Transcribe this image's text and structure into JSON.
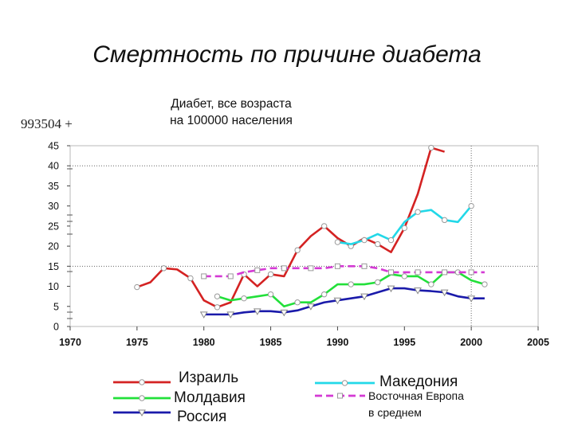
{
  "slide_title": "Смертность по причине диабета",
  "code_label": "993504 +",
  "chart_data": {
    "type": "line",
    "title": [
      "Диабет, все возраста",
      "на 100000 населения"
    ],
    "xlim": [
      1970,
      2005
    ],
    "ylim": [
      0,
      45
    ],
    "x_ticks": [
      "1970",
      "1975",
      "1980",
      "1985",
      "1990",
      "1995",
      "2000",
      "2005"
    ],
    "y_ticks": [
      "0",
      "5",
      "10",
      "15",
      "20",
      "25",
      "30",
      "35",
      "40",
      "45"
    ],
    "grid": "dotted",
    "series": [
      {
        "name": "Израиль",
        "color": "#d42222",
        "marker": "circle",
        "x": [
          1975,
          1976,
          1977,
          1978,
          1979,
          1980,
          1981,
          1982,
          1983,
          1984,
          1985,
          1986,
          1987,
          1988,
          1989,
          1990,
          1991,
          1992,
          1993,
          1994,
          1995,
          1996,
          1997,
          1998
        ],
        "y": [
          9.8,
          11,
          14.5,
          14.2,
          12,
          6.5,
          4.8,
          6,
          13,
          10,
          13,
          12.5,
          19,
          22.5,
          25,
          22,
          20,
          22,
          20.5,
          18.5,
          24.5,
          33,
          44.5,
          43.5
        ]
      },
      {
        "name": "Македония",
        "color": "#22d8e8",
        "marker": "circle",
        "x": [
          1990,
          1991,
          1992,
          1993,
          1994,
          1995,
          1996,
          1997,
          1998,
          1999,
          2000
        ],
        "y": [
          21,
          20.5,
          21.5,
          23,
          21.5,
          26,
          28.5,
          29,
          26.5,
          26,
          30
        ]
      },
      {
        "name": "Молдавия",
        "color": "#22e03a",
        "marker": "circle",
        "x": [
          1981,
          1982,
          1983,
          1984,
          1985,
          1986,
          1987,
          1988,
          1989,
          1990,
          1991,
          1992,
          1993,
          1994,
          1995,
          1996,
          1997,
          1998,
          1999,
          2000,
          2001
        ],
        "y": [
          7.5,
          6.5,
          7,
          7.5,
          8,
          5,
          6,
          6,
          8,
          10.5,
          10.5,
          10.5,
          11,
          13,
          12.5,
          12.5,
          10.5,
          13.5,
          13.5,
          11.5,
          10.5
        ]
      },
      {
        "name": "Восточная Европа в среднем",
        "color": "#d43ad4",
        "marker": "square",
        "x": [
          1980,
          1981,
          1982,
          1983,
          1984,
          1985,
          1986,
          1987,
          1988,
          1989,
          1990,
          1991,
          1992,
          1993,
          1994,
          1995,
          1996,
          1997,
          1998,
          1999,
          2000,
          2001
        ],
        "y": [
          12.5,
          12.5,
          12.5,
          13.5,
          14,
          14.5,
          14.5,
          14.5,
          14.5,
          14.5,
          15,
          15,
          15,
          14.5,
          13.5,
          13.5,
          13.5,
          13.5,
          13.5,
          13.5,
          13.5,
          13.5
        ]
      },
      {
        "name": "Россия",
        "color": "#1a1aaa",
        "marker": "triangle-down",
        "x": [
          1980,
          1981,
          1982,
          1983,
          1984,
          1985,
          1986,
          1987,
          1988,
          1989,
          1990,
          1991,
          1992,
          1993,
          1994,
          1995,
          1996,
          1997,
          1998,
          1999,
          2000,
          2001
        ],
        "y": [
          3,
          3,
          3,
          3.5,
          3.8,
          3.8,
          3.5,
          4,
          5,
          6,
          6.5,
          7,
          7.5,
          8.5,
          9.5,
          9.5,
          9,
          8.8,
          8.5,
          7.5,
          7,
          7
        ]
      }
    ],
    "legend": [
      {
        "label": "Израиль",
        "color": "#d42222",
        "marker": "circle"
      },
      {
        "label": "Молдавия",
        "color": "#22e03a",
        "marker": "circle"
      },
      {
        "label": "Россия",
        "color": "#1a1aaa",
        "marker": "triangle-down"
      },
      {
        "label": "Македония",
        "color": "#22d8e8",
        "marker": "circle"
      },
      {
        "label": "Восточная Европа",
        "label2": "в среднем",
        "color": "#d43ad4",
        "marker": "square"
      }
    ]
  }
}
